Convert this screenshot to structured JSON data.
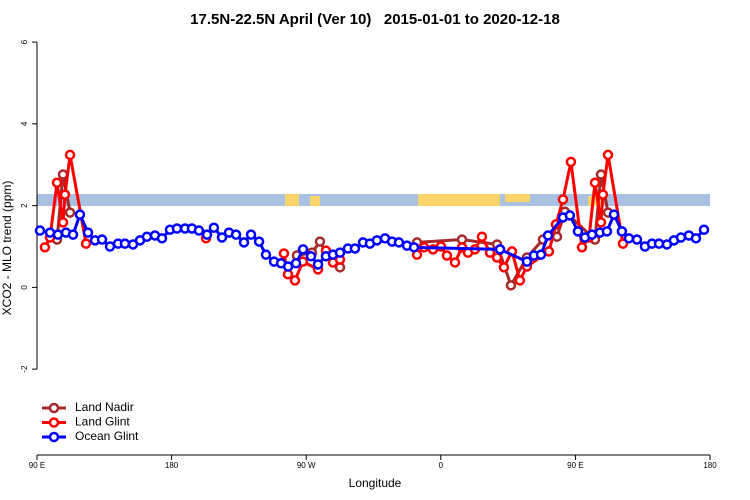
{
  "chart_data": {
    "type": "line",
    "title": "17.5N-22.5N April (Ver 10)   2015-01-01 to 2020-12-18",
    "x_label": "Longitude",
    "y_label": "XCO2 - MLO trend (ppm)",
    "xlim": [
      90,
      540
    ],
    "xticks": [
      {
        "value": 90,
        "label": "90 E"
      },
      180,
      {
        "value": 270,
        "label": "90 W"
      },
      {
        "value": 360,
        "label": "0"
      },
      {
        "value": 450,
        "label": "90 E"
      },
      {
        "value": 540,
        "label": "180"
      }
    ],
    "ylim": [
      -4.1,
      6.1
    ],
    "yticks": [
      -2,
      0,
      2,
      4,
      6
    ],
    "legend": "bottom-left",
    "series": [
      {
        "name": "Land Nadir",
        "color": "#a52a2a",
        "x": [
          103.4,
          107.4,
          112.1,
          null,
          263.8,
          273.9,
          279.2,
          283.9,
          292.6,
          null,
          344.1,
          374.2,
          397.6,
          406.9,
          417.6,
          428.3,
          437.7,
          443.0,
          463.1,
          467.1,
          471.8
        ],
        "values": [
          1.17,
          2.76,
          1.83,
          null,
          0.78,
          0.85,
          1.12,
          0.8,
          0.49,
          null,
          1.1,
          1.17,
          1.05,
          0.05,
          0.73,
          1.17,
          1.24,
          1.85,
          1.17,
          2.76,
          1.83
        ]
      },
      {
        "name": "Land Glint",
        "color": "#ff0000",
        "x": [
          95.3,
          98.7,
          103.4,
          107.4,
          108.7,
          112.1,
          122.8,
          null,
          203.0,
          null,
          255.1,
          257.8,
          262.5,
          267.8,
          277.9,
          283.2,
          287.9,
          292.6,
          null,
          344.1,
          348.8,
          354.8,
          360.1,
          364.1,
          369.5,
          374.2,
          378.2,
          382.8,
          387.5,
          392.9,
          397.6,
          402.2,
          407.6,
          412.9,
          417.6,
          432.3,
          437.0,
          441.7,
          447.0,
          454.4,
          459.1,
          463.1,
          467.1,
          468.4,
          471.8,
          481.8
        ],
        "values": [
          0.98,
          1.22,
          2.56,
          1.59,
          2.27,
          3.24,
          1.07,
          null,
          1.2,
          null,
          0.83,
          0.32,
          0.17,
          0.63,
          0.44,
          0.9,
          0.61,
          0.68,
          null,
          0.8,
          0.98,
          0.93,
          1.0,
          0.78,
          0.61,
          0.98,
          0.85,
          0.93,
          1.24,
          0.85,
          0.73,
          0.49,
          0.88,
          0.17,
          0.51,
          0.88,
          1.54,
          2.15,
          3.07,
          0.98,
          1.22,
          2.56,
          1.59,
          2.27,
          3.24,
          1.07
        ]
      },
      {
        "name": "Ocean Glint",
        "color": "#0000ff",
        "x": [
          92.0,
          98.7,
          104.0,
          109.4,
          114.1,
          118.7,
          124.1,
          128.8,
          133.5,
          138.8,
          144.2,
          148.8,
          154.2,
          158.9,
          163.5,
          168.9,
          173.6,
          178.9,
          183.6,
          189.0,
          193.6,
          198.3,
          203.7,
          208.3,
          213.7,
          218.4,
          223.1,
          228.4,
          233.1,
          238.5,
          243.1,
          248.5,
          253.2,
          257.9,
          263.2,
          267.9,
          273.2,
          277.9,
          283.2,
          287.9,
          292.6,
          297.9,
          302.6,
          308.0,
          312.6,
          317.3,
          322.7,
          327.4,
          332.0,
          337.4,
          342.1,
          399.6,
          417.6,
          422.3,
          427.0,
          431.7,
          441.7,
          446.3,
          451.7,
          456.4,
          461.1,
          466.4,
          471.1,
          475.8,
          481.1,
          485.8,
          491.2,
          496.5,
          501.2,
          505.9,
          511.2,
          515.9,
          520.6,
          525.9,
          530.6,
          536.0
        ],
        "values": [
          1.39,
          1.34,
          1.29,
          1.34,
          1.29,
          1.78,
          1.34,
          1.15,
          1.17,
          1.0,
          1.07,
          1.07,
          1.05,
          1.15,
          1.24,
          1.27,
          1.2,
          1.41,
          1.44,
          1.44,
          1.44,
          1.39,
          1.29,
          1.46,
          1.22,
          1.34,
          1.29,
          1.1,
          1.29,
          1.12,
          0.8,
          0.63,
          0.59,
          0.51,
          0.59,
          0.93,
          0.76,
          0.56,
          0.76,
          0.8,
          0.85,
          0.95,
          0.95,
          1.1,
          1.07,
          1.15,
          1.2,
          1.12,
          1.1,
          1.02,
          0.98,
          0.93,
          0.63,
          0.78,
          0.8,
          1.27,
          1.71,
          1.76,
          1.37,
          1.22,
          1.29,
          1.34,
          1.37,
          1.78,
          1.37,
          1.2,
          1.17,
          1.0,
          1.07,
          1.07,
          1.05,
          1.15,
          1.22,
          1.27,
          1.2,
          1.41
        ]
      }
    ]
  }
}
